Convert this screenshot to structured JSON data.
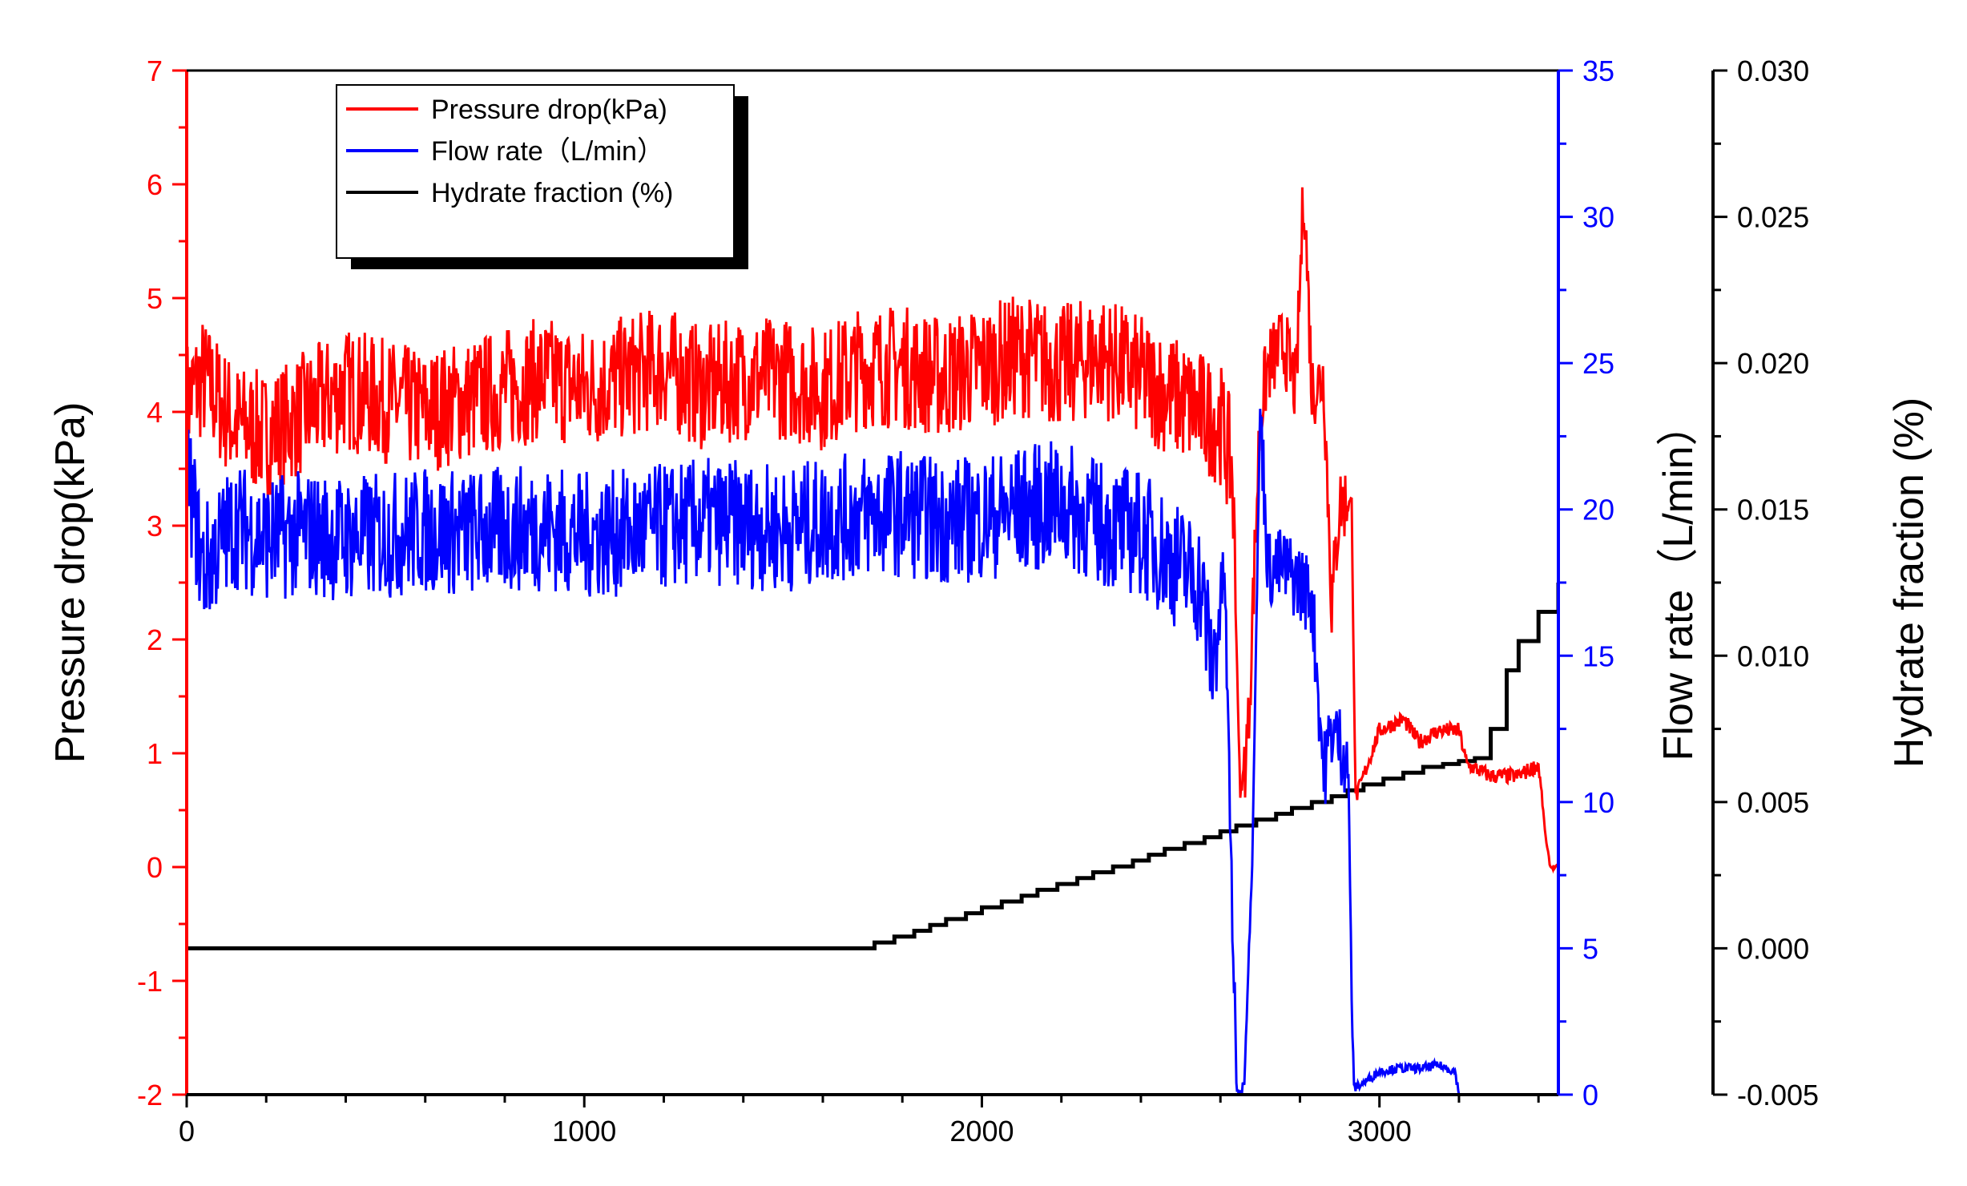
{
  "chart_data": {
    "type": "line",
    "x": {
      "label": "",
      "range": [
        0,
        3450
      ],
      "ticks": [
        0,
        1000,
        2000,
        3000
      ],
      "tick_labels": [
        "0",
        "1000",
        "2000",
        "3000"
      ]
    },
    "axes": {
      "left": {
        "label": "Pressure drop(kPa)",
        "range": [
          -2,
          7
        ],
        "ticks": [
          -2,
          -1,
          0,
          1,
          2,
          3,
          4,
          5,
          6,
          7
        ],
        "tick_labels": [
          "-2",
          "-1",
          "0",
          "1",
          "2",
          "3",
          "4",
          "5",
          "6",
          "7"
        ],
        "color": "#ff0000"
      },
      "right1": {
        "label": "Flow rate（L/min）",
        "range": [
          0,
          35
        ],
        "ticks": [
          0,
          5,
          10,
          15,
          20,
          25,
          30,
          35
        ],
        "tick_labels": [
          "0",
          "5",
          "10",
          "15",
          "20",
          "25",
          "30",
          "35"
        ],
        "color": "#0000ff"
      },
      "right2": {
        "label": "Hydrate fraction (%)",
        "range": [
          -0.005,
          0.03
        ],
        "ticks": [
          -0.005,
          0.0,
          0.005,
          0.01,
          0.015,
          0.02,
          0.025,
          0.03
        ],
        "tick_labels": [
          "-0.005",
          "0.000",
          "0.005",
          "0.010",
          "0.015",
          "0.020",
          "0.025",
          "0.030"
        ],
        "color": "#000000"
      }
    },
    "series": [
      {
        "name": "Pressure drop(kPa)",
        "axis": "left",
        "color": "#ff0000",
        "x": [
          0,
          40,
          120,
          200,
          300,
          400,
          500,
          600,
          700,
          800,
          900,
          1000,
          1100,
          1200,
          1300,
          1400,
          1500,
          1600,
          1700,
          1800,
          1900,
          2000,
          2100,
          2200,
          2300,
          2400,
          2500,
          2550,
          2600,
          2630,
          2650,
          2670,
          2700,
          2720,
          2760,
          2790,
          2810,
          2830,
          2860,
          2880,
          2900,
          2930,
          2940,
          2970,
          3000,
          3060,
          3100,
          3150,
          3200,
          3220,
          3280,
          3350,
          3400,
          3420,
          3430,
          3450
        ],
        "values": [
          4.1,
          4.3,
          3.9,
          3.8,
          4.0,
          4.2,
          4.1,
          4.0,
          4.1,
          4.2,
          4.3,
          4.2,
          4.3,
          4.4,
          4.2,
          4.3,
          4.3,
          4.2,
          4.4,
          4.4,
          4.3,
          4.4,
          4.5,
          4.4,
          4.5,
          4.3,
          4.1,
          4.0,
          3.9,
          3.5,
          0.6,
          1.2,
          4.0,
          4.4,
          4.6,
          4.2,
          6.0,
          4.2,
          4.3,
          2.3,
          3.2,
          3.2,
          0.6,
          0.9,
          1.2,
          1.3,
          1.1,
          1.2,
          1.2,
          0.9,
          0.8,
          0.8,
          0.9,
          0.2,
          0.0,
          0.0
        ]
      },
      {
        "name": "Flow rate（L/min）",
        "axis": "right1",
        "color": "#0000ff",
        "x": [
          0,
          40,
          120,
          200,
          300,
          400,
          500,
          600,
          700,
          800,
          900,
          1000,
          1100,
          1200,
          1300,
          1400,
          1500,
          1600,
          1700,
          1800,
          1900,
          2000,
          2100,
          2200,
          2300,
          2400,
          2500,
          2550,
          2580,
          2610,
          2640,
          2650,
          2660,
          2680,
          2700,
          2720,
          2760,
          2800,
          2830,
          2860,
          2880,
          2900,
          2920,
          2935,
          2945,
          2960,
          3000,
          3050,
          3100,
          3150,
          3190,
          3200,
          3450
        ],
        "values": [
          21.5,
          18.0,
          19.5,
          19.0,
          19.2,
          19.0,
          19.1,
          19.3,
          19.2,
          19.3,
          19.4,
          19.1,
          19.2,
          19.4,
          19.6,
          19.5,
          19.3,
          19.6,
          19.8,
          19.9,
          19.6,
          19.7,
          20.0,
          20.2,
          19.5,
          19.2,
          18.0,
          17.5,
          14.5,
          18.0,
          0.3,
          0.0,
          0.5,
          8.0,
          23.5,
          18.0,
          18.0,
          17.5,
          17.0,
          11.0,
          12.5,
          12.0,
          11.5,
          0.2,
          0.3,
          0.4,
          0.8,
          0.9,
          0.9,
          1.0,
          0.8,
          0.0,
          0.0
        ]
      },
      {
        "name": "Hydrate fraction (%)",
        "axis": "right2",
        "color": "#000000",
        "step_x": [
          0,
          1730,
          1780,
          1830,
          1870,
          1910,
          1960,
          2000,
          2050,
          2100,
          2140,
          2190,
          2240,
          2280,
          2330,
          2380,
          2420,
          2460,
          2510,
          2560,
          2600,
          2640,
          2690,
          2740,
          2780,
          2830,
          2880,
          2920,
          2960,
          3010,
          3060,
          3110,
          3160,
          3200,
          3240,
          3280,
          3320,
          3350,
          3400,
          3450
        ],
        "values": [
          0.0,
          0.0002,
          0.0004,
          0.0006,
          0.0008,
          0.001,
          0.0012,
          0.0014,
          0.0016,
          0.0018,
          0.002,
          0.0022,
          0.0024,
          0.0026,
          0.0028,
          0.003,
          0.0032,
          0.0034,
          0.0036,
          0.0038,
          0.004,
          0.0042,
          0.0044,
          0.0046,
          0.0048,
          0.005,
          0.0052,
          0.0054,
          0.0056,
          0.0058,
          0.006,
          0.0062,
          0.0063,
          0.0064,
          0.0065,
          0.0075,
          0.0095,
          0.0105,
          0.0115,
          0.0125
        ]
      }
    ],
    "legend": {
      "position": "top-left",
      "entries": [
        "Pressure drop(kPa)",
        "Flow rate（L/min）",
        "Hydrate fraction (%)"
      ]
    }
  }
}
